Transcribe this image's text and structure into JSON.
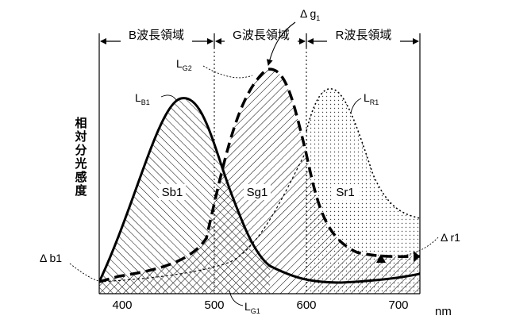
{
  "regions": {
    "b": "B波長領域",
    "g": "G波長領域",
    "r": "R波長領域"
  },
  "axis": {
    "ylabel": "相対分光感度",
    "xunit": "nm",
    "ticks": [
      "400",
      "500",
      "600",
      "700"
    ]
  },
  "areas": {
    "sb1": "Sb1",
    "sg1": "Sg1",
    "sr1": "Sr1"
  },
  "curves": {
    "lb1": {
      "main": "L",
      "sub": "B1"
    },
    "lg1": {
      "main": "L",
      "sub": "G1"
    },
    "lg2": {
      "main": "L",
      "sub": "G2"
    },
    "lr1": {
      "main": "L",
      "sub": "R1"
    }
  },
  "deltas": {
    "g1": {
      "main": "Δ g",
      "sub": "1"
    },
    "b1": "Δ b1",
    "r1": "Δ r1"
  }
}
